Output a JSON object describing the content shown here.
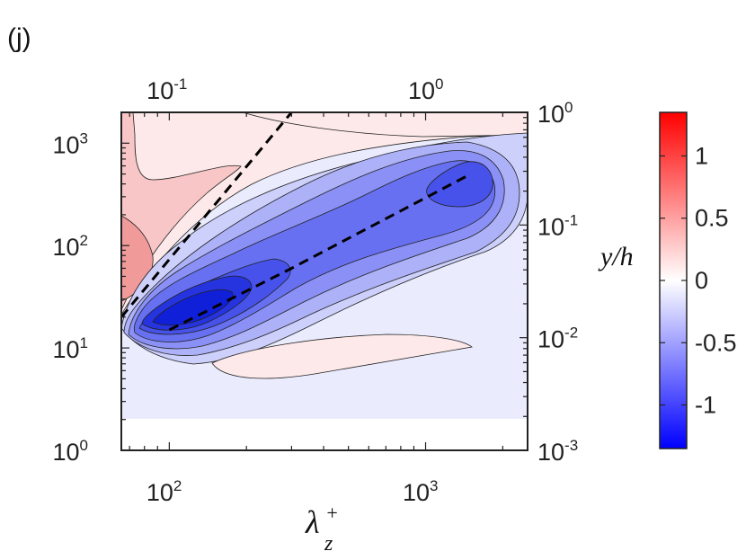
{
  "chart_data": {
    "type": "contour",
    "panel_label": "(j)",
    "x_axis_bottom": {
      "label_main": "λ",
      "label_sup": "+",
      "label_sub": "z",
      "scale": "log",
      "range": [
        65,
        2500
      ],
      "ticks": [
        {
          "base": "10",
          "exp": "2",
          "value": 100
        },
        {
          "base": "10",
          "exp": "3",
          "value": 1000
        }
      ]
    },
    "x_axis_top": {
      "scale": "log",
      "ticks": [
        {
          "base": "10",
          "exp": "-1",
          "value": 0.1
        },
        {
          "base": "10",
          "exp": "0",
          "value": 1
        }
      ]
    },
    "y_axis_left": {
      "scale": "log",
      "range": [
        1,
        2000
      ],
      "ticks": [
        {
          "base": "10",
          "exp": "0",
          "value": 1
        },
        {
          "base": "10",
          "exp": "1",
          "value": 10
        },
        {
          "base": "10",
          "exp": "2",
          "value": 100
        },
        {
          "base": "10",
          "exp": "3",
          "value": 1000
        }
      ]
    },
    "y_axis_right": {
      "label": "y/h",
      "scale": "log",
      "range": [
        0.001,
        1
      ],
      "ticks": [
        {
          "base": "10",
          "exp": "-3",
          "value": 0.001
        },
        {
          "base": "10",
          "exp": "-2",
          "value": 0.01
        },
        {
          "base": "10",
          "exp": "-1",
          "value": 0.1
        },
        {
          "base": "10",
          "exp": "0",
          "value": 1
        }
      ]
    },
    "colorbar": {
      "range": [
        -1.35,
        1.35
      ],
      "colormap": [
        "#0000ff",
        "#ffffff",
        "#ff0000"
      ],
      "ticks": [
        {
          "label": "1",
          "value": 1
        },
        {
          "label": "0.5",
          "value": 0.5
        },
        {
          "label": "0",
          "value": 0
        },
        {
          "label": "-0.5",
          "value": -0.5
        },
        {
          "label": "-1",
          "value": -1
        }
      ]
    },
    "dashed_lines": [
      {
        "points": [
          [
            65,
            20
          ],
          [
            300,
            2000
          ]
        ]
      },
      {
        "points": [
          [
            100,
            15
          ],
          [
            300,
            60
          ],
          [
            1500,
            500
          ]
        ]
      }
    ],
    "colors": {
      "neg_background": "#eaebfd",
      "pos_light": "#fde9e9",
      "pos_mid": "#f8c6c6",
      "pos_strong": "#f19a9a"
    }
  }
}
